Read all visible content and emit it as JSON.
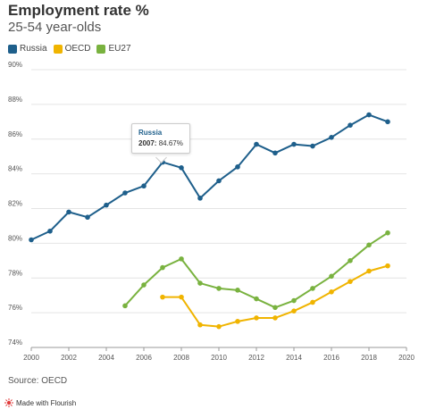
{
  "header": {
    "title": "Employment rate %",
    "subtitle": "25-54 year-olds"
  },
  "legend": [
    {
      "label": "Russia",
      "color": "#1e5f8b"
    },
    {
      "label": "OECD",
      "color": "#f0b400"
    },
    {
      "label": "EU27",
      "color": "#79b23f"
    }
  ],
  "tooltip": {
    "series": "Russia",
    "year": "2007:",
    "value": "84.67%"
  },
  "footer": {
    "source": "Source: OECD",
    "made_with": "Made with Flourish"
  },
  "chart_data": {
    "type": "line",
    "x": [
      2000,
      2001,
      2002,
      2003,
      2004,
      2005,
      2006,
      2007,
      2008,
      2009,
      2010,
      2011,
      2012,
      2013,
      2014,
      2015,
      2016,
      2017,
      2018,
      2019
    ],
    "series": [
      {
        "name": "Russia",
        "color": "#1e5f8b",
        "values": [
          80.2,
          80.7,
          81.8,
          81.5,
          82.2,
          82.9,
          83.3,
          84.67,
          84.35,
          82.6,
          83.6,
          84.4,
          85.7,
          85.2,
          85.7,
          85.6,
          86.1,
          86.8,
          87.4,
          87.0
        ]
      },
      {
        "name": "OECD",
        "color": "#f0b400",
        "values": [
          null,
          null,
          null,
          null,
          null,
          null,
          null,
          76.9,
          76.9,
          75.3,
          75.2,
          75.5,
          75.7,
          75.7,
          76.1,
          76.6,
          77.2,
          77.8,
          78.4,
          78.7
        ]
      },
      {
        "name": "EU27",
        "color": "#79b23f",
        "values": [
          null,
          null,
          null,
          null,
          null,
          76.4,
          77.6,
          78.6,
          79.1,
          77.7,
          77.4,
          77.3,
          76.8,
          76.3,
          76.7,
          77.4,
          78.1,
          79.0,
          79.9,
          80.6
        ]
      }
    ],
    "x_ticks": [
      "2000",
      "2002",
      "2004",
      "2006",
      "2008",
      "2010",
      "2012",
      "2014",
      "2016",
      "2018",
      "2020"
    ],
    "y_ticks": [
      "74%",
      "76%",
      "78%",
      "80%",
      "82%",
      "84%",
      "86%",
      "88%",
      "90%"
    ],
    "xlim": [
      2000,
      2020
    ],
    "ylim": [
      74,
      90
    ],
    "grid": true
  }
}
